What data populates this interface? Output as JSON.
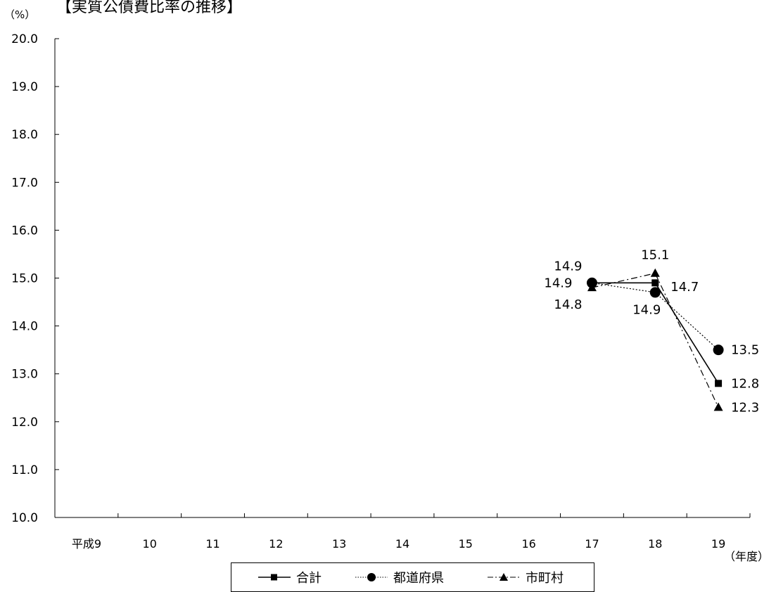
{
  "chart_data": {
    "type": "line",
    "title": "【実質公債費比率の推移】",
    "ylabel": "（%）",
    "xlabel": "（年度）",
    "categories": [
      "平成9",
      "10",
      "11",
      "12",
      "13",
      "14",
      "15",
      "16",
      "17",
      "18",
      "19"
    ],
    "ylim": [
      10.0,
      20.0
    ],
    "yticks": [
      "10.0",
      "11.0",
      "12.0",
      "13.0",
      "14.0",
      "15.0",
      "16.0",
      "17.0",
      "18.0",
      "19.0",
      "20.0"
    ],
    "grid": false,
    "legend_position": "bottom",
    "series": [
      {
        "name": "合計",
        "marker": "square",
        "dash": "solid",
        "values": [
          null,
          null,
          null,
          null,
          null,
          null,
          null,
          null,
          14.9,
          14.9,
          12.8
        ],
        "labels": [
          null,
          null,
          null,
          null,
          null,
          null,
          null,
          null,
          "14.9",
          "14.9",
          "12.8"
        ]
      },
      {
        "name": "都道府県",
        "marker": "circle",
        "dash": "dotted",
        "values": [
          null,
          null,
          null,
          null,
          null,
          null,
          null,
          null,
          14.9,
          14.7,
          13.5
        ],
        "labels": [
          null,
          null,
          null,
          null,
          null,
          null,
          null,
          null,
          "14.9",
          "14.7",
          "13.5"
        ]
      },
      {
        "name": "市町村",
        "marker": "triangle",
        "dash": "dashdot",
        "values": [
          null,
          null,
          null,
          null,
          null,
          null,
          null,
          null,
          14.8,
          15.1,
          12.3
        ],
        "labels": [
          null,
          null,
          null,
          null,
          null,
          null,
          null,
          null,
          "14.8",
          "15.1",
          "12.3"
        ]
      }
    ]
  }
}
